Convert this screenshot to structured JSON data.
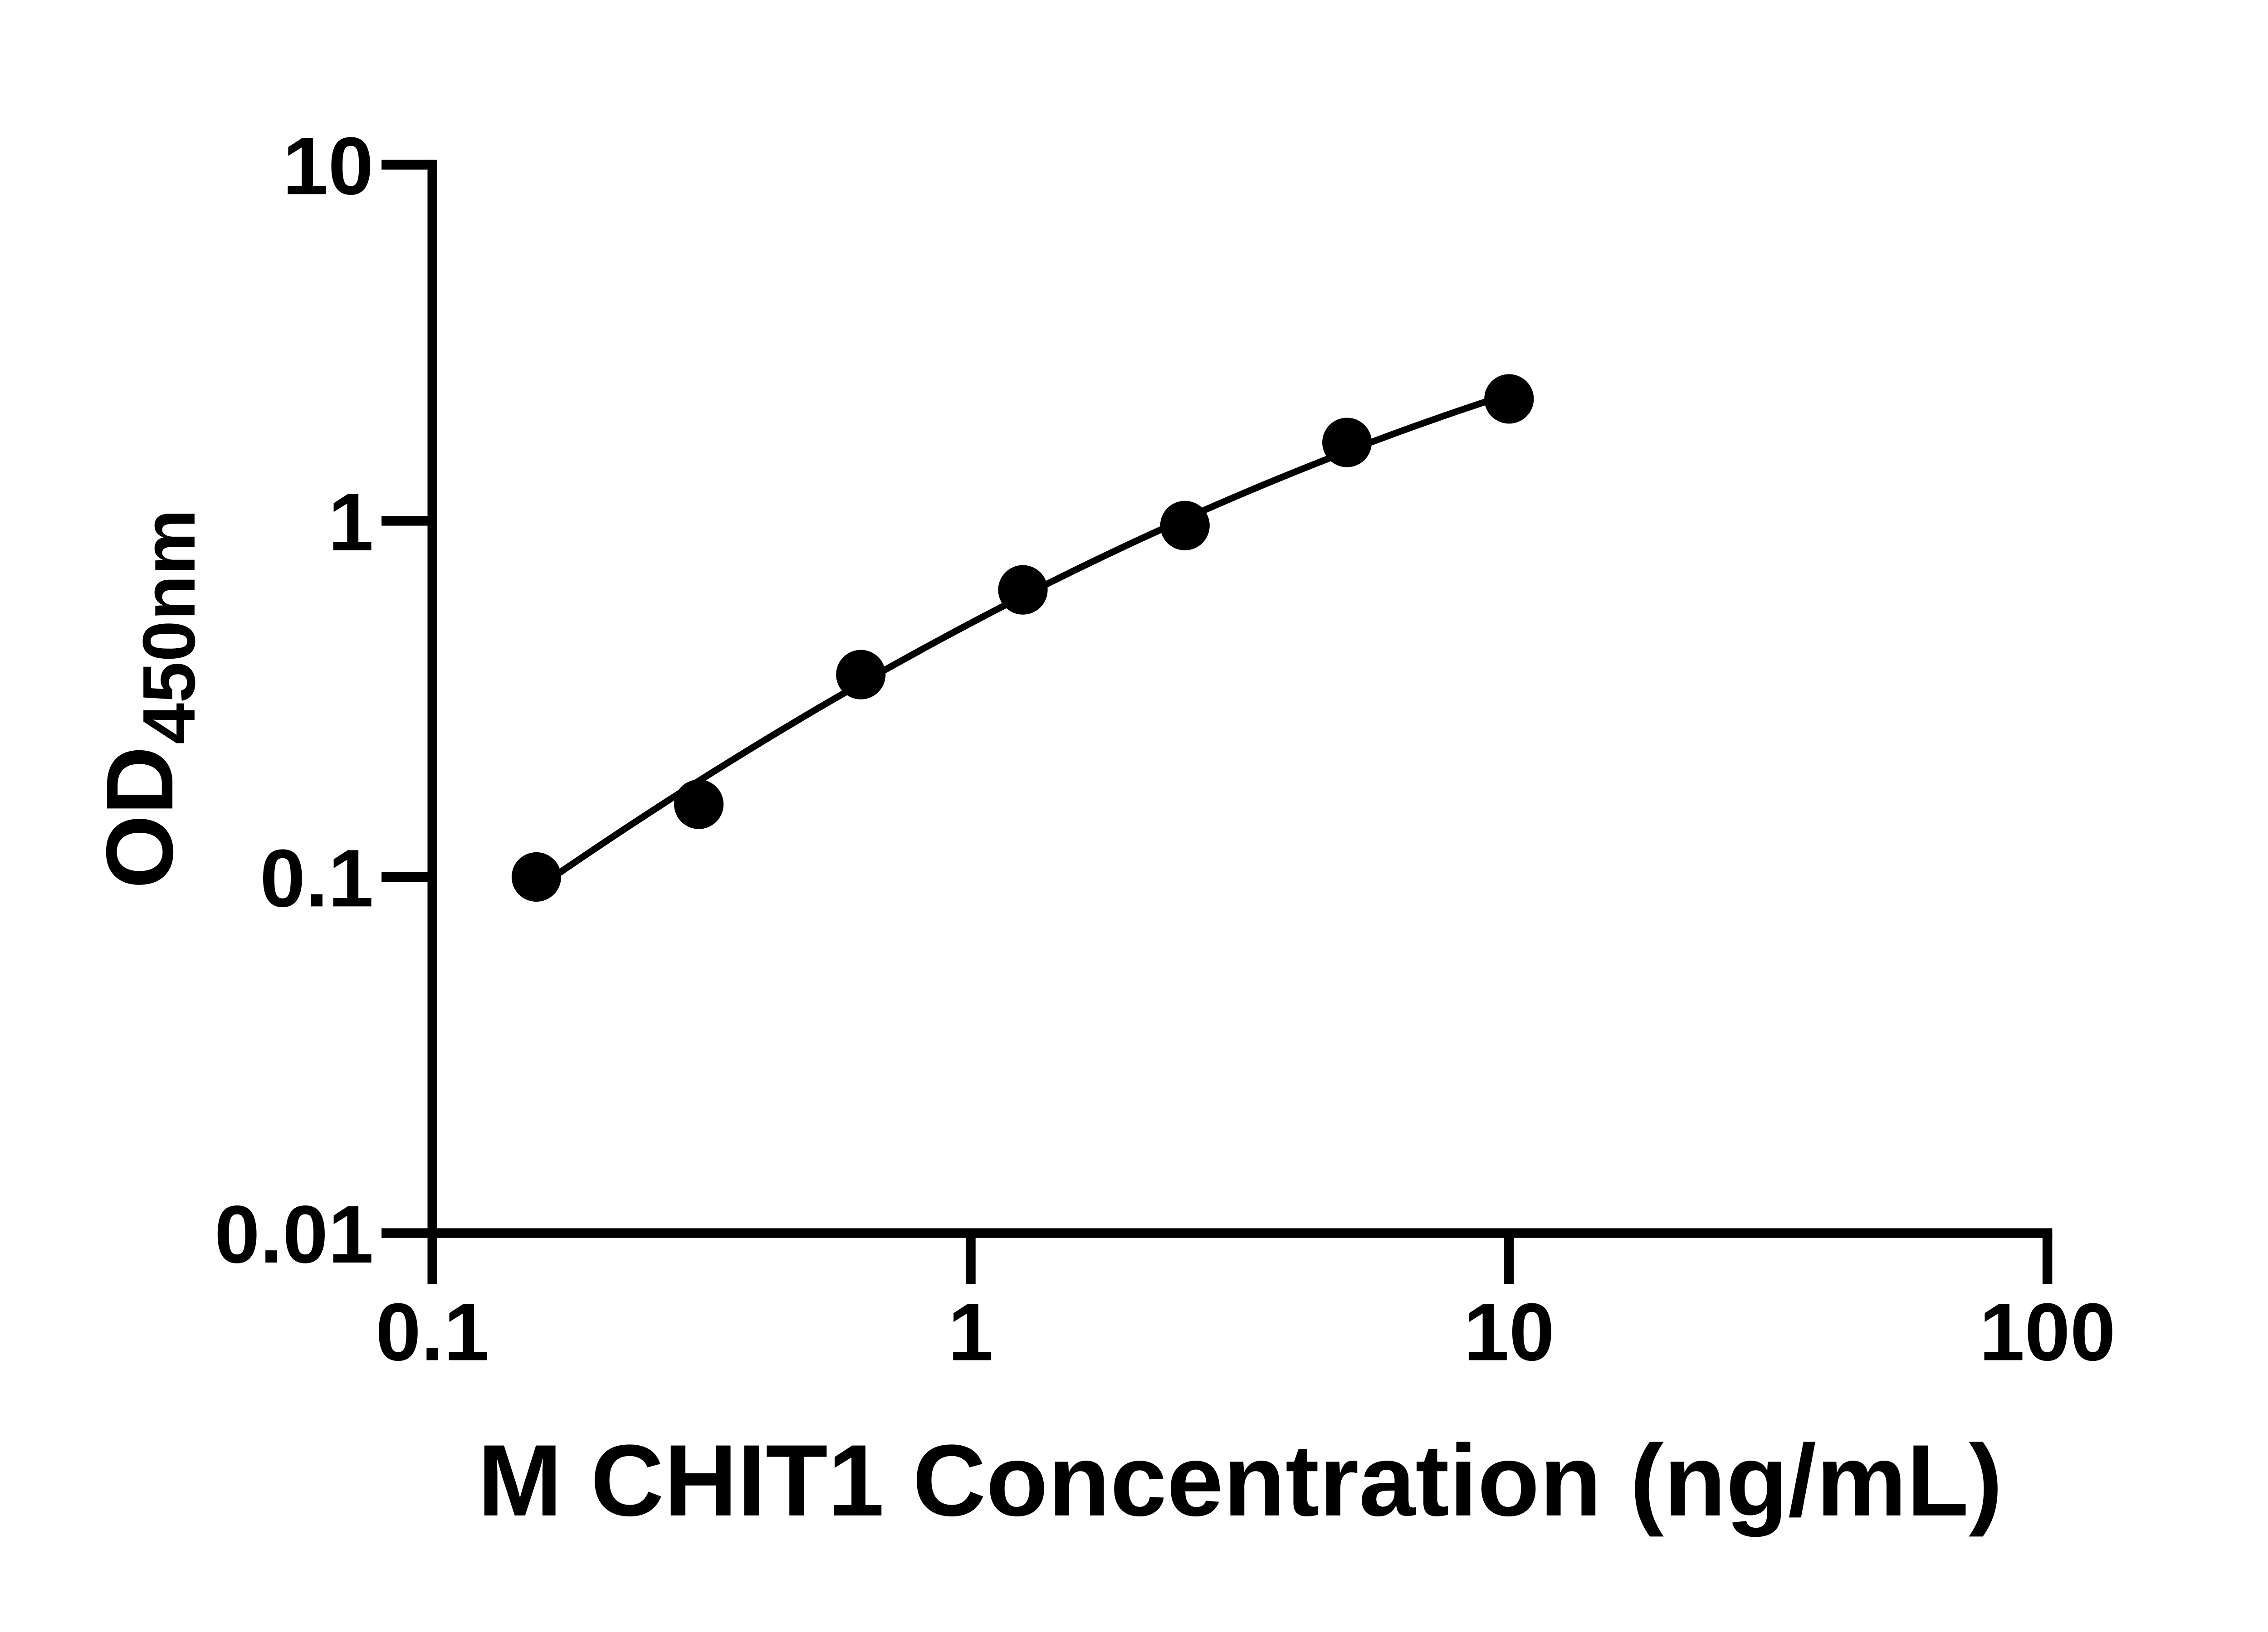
{
  "chart_data": {
    "type": "scatter",
    "title": "",
    "xlabel": "M CHIT1 Concentration (ng/mL)",
    "ylabel": "OD450nm",
    "ylabel_parts": {
      "main": "OD",
      "subscript": "450nm"
    },
    "x_scale": "log10",
    "y_scale": "log10",
    "xlim": [
      0.1,
      100
    ],
    "ylim": [
      0.01,
      10
    ],
    "x_ticks": [
      {
        "value": 0.1,
        "label": "0.1"
      },
      {
        "value": 1,
        "label": "1"
      },
      {
        "value": 10,
        "label": "10"
      },
      {
        "value": 100,
        "label": "100"
      }
    ],
    "y_ticks": [
      {
        "value": 0.01,
        "label": "0.01"
      },
      {
        "value": 0.1,
        "label": "0.1"
      },
      {
        "value": 1,
        "label": "1"
      },
      {
        "value": 10,
        "label": "10"
      }
    ],
    "grid": false,
    "legend": "none",
    "series": [
      {
        "marker": "filled-circle",
        "color": "#000000",
        "points": [
          {
            "x": 0.156,
            "y": 0.1
          },
          {
            "x": 0.3125,
            "y": 0.16
          },
          {
            "x": 0.625,
            "y": 0.37
          },
          {
            "x": 1.25,
            "y": 0.64
          },
          {
            "x": 2.5,
            "y": 0.97
          },
          {
            "x": 5,
            "y": 1.66
          },
          {
            "x": 10,
            "y": 2.2
          }
        ]
      }
    ],
    "trend_curve": {
      "shape": "quadratic_in_loglog",
      "coefficients": {
        "a": -0.2873,
        "b": 0.7988,
        "c": -0.1555
      },
      "x_start": 0.156,
      "x_end": 10,
      "color": "#000000"
    },
    "axis_color": "#000000",
    "text_color": "#000000",
    "background_color": "#ffffff"
  }
}
